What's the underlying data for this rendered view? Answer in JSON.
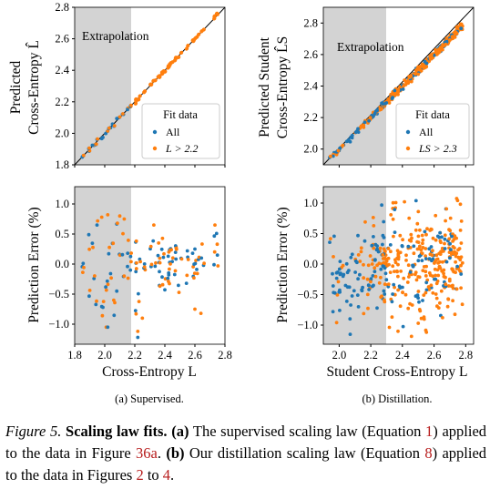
{
  "colors": {
    "all": "#1f77b4",
    "fit": "#ff7f0e",
    "shade": "#d3d3d3",
    "diag": "#000000"
  },
  "chart_data": [
    {
      "id": "a-top",
      "type": "scatter",
      "xlim": [
        1.8,
        2.8
      ],
      "ylim": [
        1.8,
        2.8
      ],
      "yticks": [
        "1.8",
        "2.0",
        "2.2",
        "2.4",
        "2.6",
        "2.8"
      ],
      "ylabel": [
        "Predicted",
        "Cross-Entropy L̂"
      ],
      "extrapolation_label": "Extrapolation",
      "extrapolation_range": [
        1.8,
        2.2
      ],
      "legend": {
        "title": "Fit data",
        "placement": "lower-right",
        "entries": [
          "All",
          "L > 2.2"
        ]
      },
      "diagonal": true
    },
    {
      "id": "a-bottom",
      "type": "scatter",
      "xlim": [
        1.8,
        2.8
      ],
      "ylim": [
        -1.25,
        1.15
      ],
      "xticks": [
        "1.8",
        "2.0",
        "2.2",
        "2.4",
        "2.6",
        "2.8"
      ],
      "yticks": [
        "−1.0",
        "−0.5",
        "0.0",
        "0.5",
        "1.0"
      ],
      "xlabel": "Cross-Entropy L",
      "ylabel": "Prediction Error (%)",
      "extrapolation_range": [
        1.8,
        2.2
      ],
      "caption": "(a) Supervised."
    },
    {
      "id": "b-top",
      "type": "scatter",
      "xlim": [
        1.9,
        2.85
      ],
      "ylim": [
        1.9,
        2.9
      ],
      "yticks": [
        "2.0",
        "2.2",
        "2.4",
        "2.6",
        "2.8"
      ],
      "ylabel": [
        "Predicted Student",
        "Cross-Entropy L̂S"
      ],
      "extrapolation_label": "Extrapolation",
      "extrapolation_range": [
        1.9,
        2.3
      ],
      "legend": {
        "title": "Fit data",
        "placement": "lower-right",
        "entries": [
          "All",
          "LS > 2.3"
        ]
      },
      "diagonal": true
    },
    {
      "id": "b-bottom",
      "type": "scatter",
      "xlim": [
        1.9,
        2.85
      ],
      "ylim": [
        -1.3,
        1.15
      ],
      "xticks": [
        "2.0",
        "2.2",
        "2.4",
        "2.6",
        "2.8"
      ],
      "yticks": [
        "−1.0",
        "−0.5",
        "0.0",
        "0.5",
        "1.0"
      ],
      "xlabel": "Student Cross-Entropy L",
      "ylabel": "Prediction Error (%)",
      "extrapolation_range": [
        1.9,
        2.3
      ],
      "caption": "(b) Distillation."
    }
  ],
  "caption": {
    "label": "Figure 5.",
    "title": "Scaling law fits.",
    "a_marker": "(a)",
    "text_a1": "The supervised scaling law (Equation ",
    "ref1": "1",
    "text_a2": ") applied to the data in Figure ",
    "ref36a": "36a",
    "text_a3": ".",
    "b_marker": "(b)",
    "text_b1": "Our distillation scaling law (Equation ",
    "ref8": "8",
    "text_b2": ") applied to the data in Figures ",
    "ref2": "2",
    "text_b3": " to ",
    "ref4": "4",
    "text_b4": "."
  }
}
